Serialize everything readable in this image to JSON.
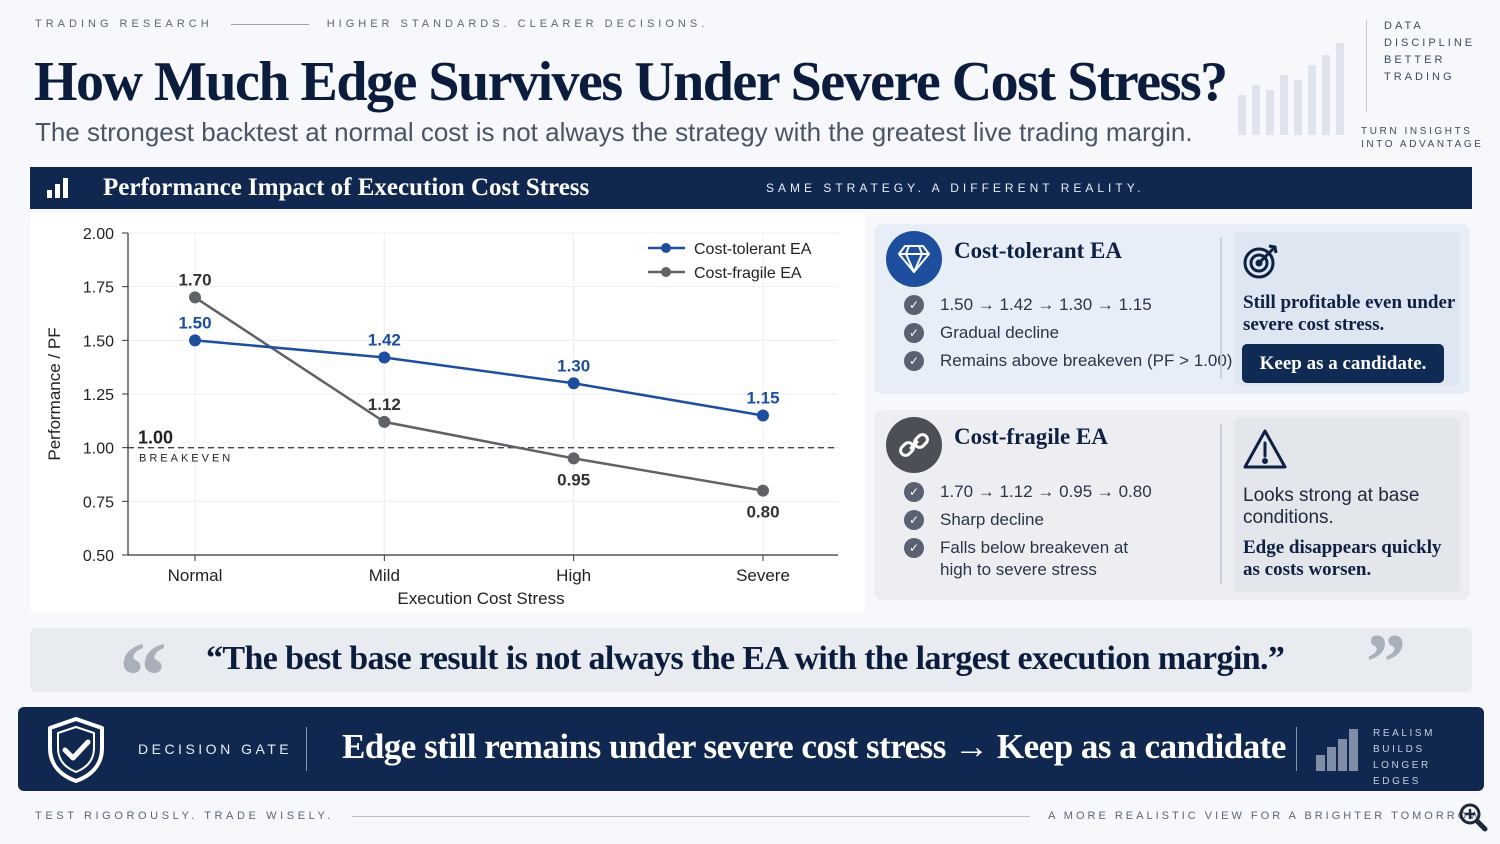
{
  "header": {
    "kicker_left": "TRADING RESEARCH",
    "kicker_right": "HIGHER STANDARDS. CLEARER DECISIONS.",
    "title": "How Much Edge Survives Under Severe Cost Stress?",
    "subtitle": "The strongest backtest at normal cost is not always the strategy with the greatest live trading margin.",
    "corner_words": [
      "DATA",
      "DISCIPLINE",
      "BETTER",
      "TRADING"
    ],
    "corner_words2": [
      "TURN INSIGHTS",
      "INTO ADVANTAGE"
    ]
  },
  "band": {
    "icon": "bar-chart-icon",
    "title": "Performance Impact of Execution Cost Stress",
    "tagline": "SAME STRATEGY. A DIFFERENT REALITY."
  },
  "chart_data": {
    "type": "line",
    "categories": [
      "Normal",
      "Mild",
      "High",
      "Severe"
    ],
    "series": [
      {
        "name": "Cost-tolerant EA",
        "values": [
          1.5,
          1.42,
          1.3,
          1.15
        ],
        "color": "#1d4f9e",
        "labels": [
          "1.50",
          "1.42",
          "1.30",
          "1.15"
        ],
        "label_pos": [
          "above",
          "above",
          "above",
          "above"
        ]
      },
      {
        "name": "Cost-fragile EA",
        "values": [
          1.7,
          1.12,
          0.95,
          0.8
        ],
        "color": "#5f6266",
        "labels": [
          "1.70",
          "1.12",
          "0.95",
          "0.80"
        ],
        "label_pos": [
          "above",
          "above",
          "below",
          "below"
        ]
      }
    ],
    "ylabel": "Performance / PF",
    "xlabel": "Execution Cost Stress",
    "ylim": [
      0.5,
      2.0
    ],
    "yticks": [
      "2.00",
      "1.75",
      "1.50",
      "1.25",
      "1.00",
      "0.75",
      "0.50"
    ],
    "ytick_values": [
      2.0,
      1.75,
      1.5,
      1.25,
      1.0,
      0.75,
      0.5
    ],
    "reference": {
      "value": 1.0,
      "label": "1.00",
      "caption": "BREAKEVEN"
    },
    "grid": true,
    "legend": "top-right"
  },
  "cards": {
    "tolerant": {
      "icon": "diamond-icon",
      "title": "Cost-tolerant EA",
      "points": [
        "1.50 → 1.42 → 1.30 → 1.15",
        "Gradual decline",
        "Remains above breakeven (PF > 1.00)"
      ],
      "side_icon": "target-icon",
      "side_text": "Still profitable even under severe cost stress.",
      "button": "Keep as a candidate."
    },
    "fragile": {
      "icon": "link-icon",
      "title": "Cost-fragile EA",
      "points": [
        "1.70 → 1.12 → 0.95 → 0.80",
        "Sharp decline",
        "Falls below breakeven at high to severe stress"
      ],
      "side_icon": "warning-icon",
      "side_text1": "Looks strong at base conditions.",
      "side_text2": "Edge disappears quickly as costs worsen."
    }
  },
  "quote": {
    "open_mark": "“",
    "close_mark": "”",
    "text": "“The best base result is not always the EA with the largest execution margin.”"
  },
  "gate": {
    "icon": "shield-check-icon",
    "label": "DECISION GATE",
    "text": "Edge still remains under severe cost stress → Keep as a candidate",
    "side": [
      "REALISM",
      "BUILDS",
      "LONGER EDGES"
    ]
  },
  "footer": {
    "left": "TEST RIGOROUSLY. TRADE WISELY.",
    "right": "A MORE REALISTIC VIEW FOR A BRIGHTER TOMORROW",
    "icon": "zoom-in-icon"
  }
}
